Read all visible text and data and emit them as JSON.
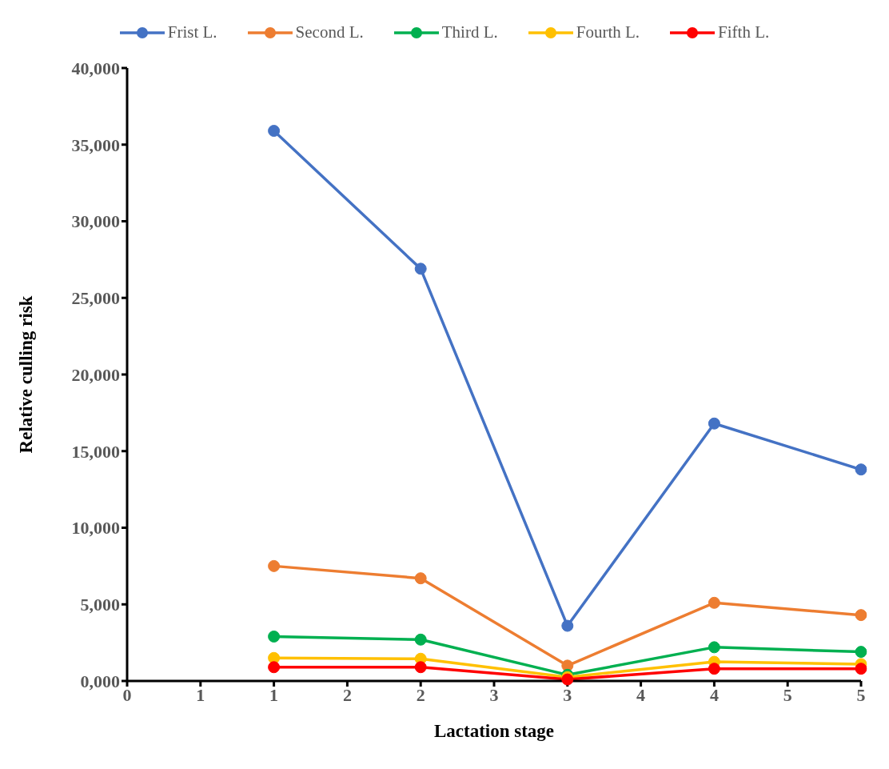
{
  "chart_data": {
    "type": "line",
    "xlabel": "Lactation stage",
    "ylabel": "Relative culling risk",
    "x": [
      1,
      2,
      3,
      4,
      5
    ],
    "series": [
      {
        "name": "Frist L.",
        "color": "#4472c4",
        "values": [
          35900,
          26900,
          3600,
          16800,
          13800
        ]
      },
      {
        "name": "Second L.",
        "color": "#ed7d31",
        "values": [
          7500,
          6700,
          1000,
          5100,
          4300
        ]
      },
      {
        "name": "Third L.",
        "color": "#00b050",
        "values": [
          2900,
          2700,
          400,
          2200,
          1900
        ]
      },
      {
        "name": "Fourth L.",
        "color": "#ffc000",
        "values": [
          1500,
          1450,
          250,
          1250,
          1100
        ]
      },
      {
        "name": "Fifth L.",
        "color": "#ff0000",
        "values": [
          900,
          900,
          100,
          800,
          800
        ]
      }
    ],
    "xlim": [
      0,
      5
    ],
    "xticks": [
      {
        "value": 0,
        "label": "0"
      },
      {
        "value": 0.5,
        "label": "1"
      },
      {
        "value": 1,
        "label": "1"
      },
      {
        "value": 1.5,
        "label": "2"
      },
      {
        "value": 2,
        "label": "2"
      },
      {
        "value": 2.5,
        "label": "3"
      },
      {
        "value": 3,
        "label": "3"
      },
      {
        "value": 3.5,
        "label": "4"
      },
      {
        "value": 4,
        "label": "4"
      },
      {
        "value": 4.5,
        "label": "5"
      },
      {
        "value": 5,
        "label": "5"
      }
    ],
    "ylim": [
      0,
      40000
    ],
    "yticks": [
      {
        "value": 0,
        "label": "0,000"
      },
      {
        "value": 5000,
        "label": "5,000"
      },
      {
        "value": 10000,
        "label": "10,000"
      },
      {
        "value": 15000,
        "label": "15,000"
      },
      {
        "value": 20000,
        "label": "20,000"
      },
      {
        "value": 25000,
        "label": "25,000"
      },
      {
        "value": 30000,
        "label": "30,000"
      },
      {
        "value": 35000,
        "label": "35,000"
      },
      {
        "value": 40000,
        "label": "40,000"
      }
    ],
    "grid": false,
    "legend": "top",
    "marker": "circle",
    "line_style": "solid"
  }
}
